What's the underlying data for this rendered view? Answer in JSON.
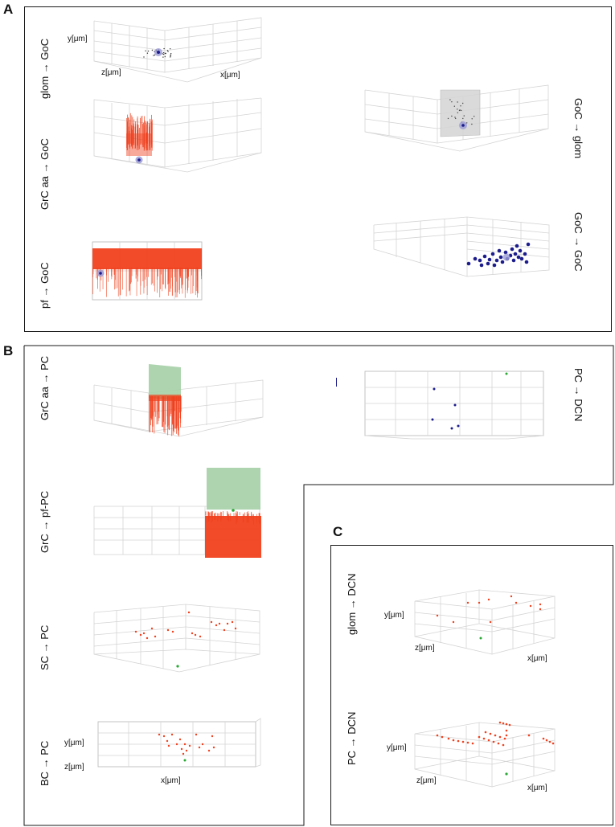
{
  "panels": {
    "A": {
      "letter": "A",
      "labels": {
        "glom_goc": "glom → GoC",
        "grcaa_goc": "GrC aa → GoC",
        "pf_goc": "pf → GoC",
        "goc_glom": "GoC → glom",
        "goc_goc": "GoC → GoC"
      },
      "axes": {
        "y": "y[μm]",
        "z": "z[μm]",
        "x": "x[μm]"
      }
    },
    "B": {
      "letter": "B",
      "labels": {
        "grcaa_pc": "GrC aa → PC",
        "grc_pfpc": "GrC → pf-PC",
        "sc_pc": "SC → PC",
        "bc_pc": "BC → PC",
        "pc_dcn": "PC → DCN"
      },
      "axes": {
        "y": "y[μm]",
        "z": "z[μm]",
        "x": "x[μm]"
      }
    },
    "C": {
      "letter": "C",
      "labels": {
        "glom_dcn": "glom → DCN",
        "pc_dcn": "PC → DCN"
      },
      "axes": {
        "y": "y[μm]",
        "z": "z[μm]",
        "x": "x[μm]"
      }
    }
  },
  "colors": {
    "granule_red": "#f0411e",
    "golgi_blue": "#1c1c8c",
    "golgi_halo": "#9b9bd6",
    "pc_green": "#2aa836",
    "green_plane": "#a5cfa6",
    "gray_plane": "#d6d6d6",
    "grid": "#d4d4d4"
  }
}
